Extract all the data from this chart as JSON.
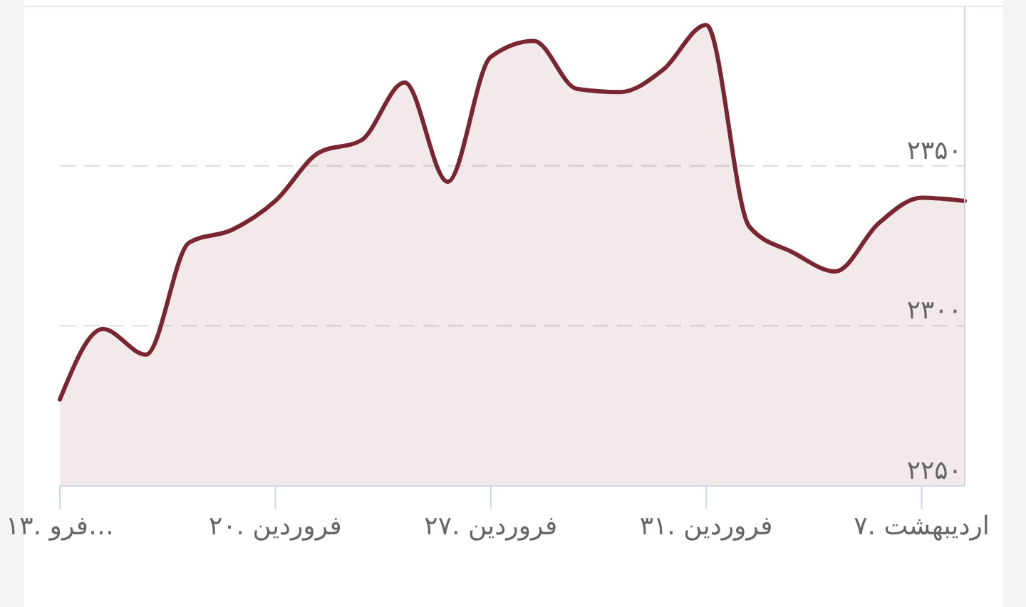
{
  "chart_data": {
    "type": "area",
    "categories": [
      "۱۳. فرو…",
      null,
      null,
      null,
      null,
      "۲۰. فروردین",
      null,
      null,
      null,
      null,
      "۲۷. فروردین",
      null,
      null,
      null,
      null,
      "۳۱. فروردین",
      null,
      null,
      null,
      null,
      "۷. اردیبهشت",
      null
    ],
    "series": [
      {
        "color": "#7a2631",
        "values": [
          2277,
          2299,
          2291,
          2326,
          2330,
          2339,
          2354,
          2358,
          2376,
          2345,
          2384,
          2389,
          2374,
          2373,
          2380,
          2394,
          2331,
          2323,
          2317,
          2332,
          2340,
          2339
        ]
      }
    ],
    "ylim": [
      2250,
      2400
    ],
    "yticks": [
      {
        "value": 2250,
        "label": "۲۲۵۰"
      },
      {
        "value": 2300,
        "label": "۲۳۰۰"
      },
      {
        "value": 2350,
        "label": "۲۳۵۰"
      }
    ],
    "grid": "y"
  }
}
